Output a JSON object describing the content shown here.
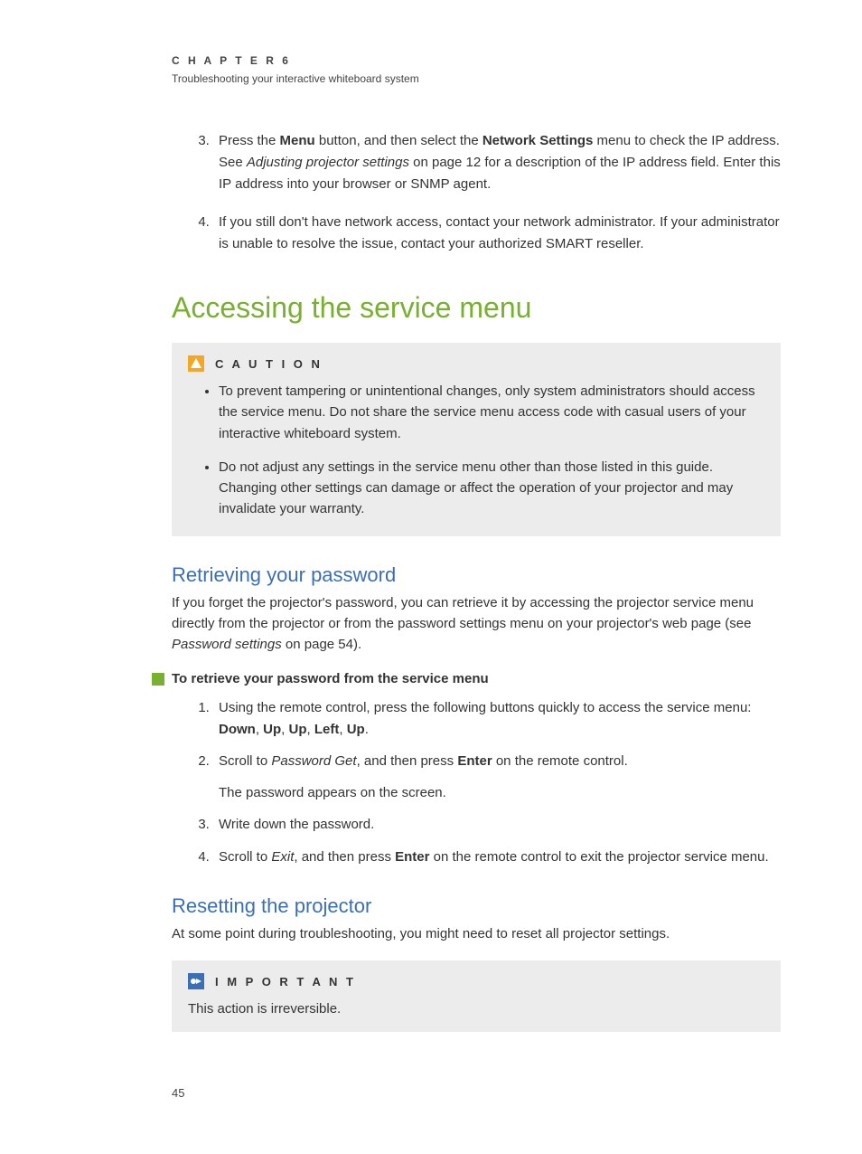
{
  "colors": {
    "h1": "#78b030",
    "h2": "#3b6fb5",
    "body_text": "#333333",
    "callout_bg": "#ececec",
    "caution_icon_bg": "#f5a623",
    "important_icon_bg": "#3b6fb5",
    "procedure_icon": "#78b030",
    "page_bg": "#ffffff"
  },
  "typography": {
    "body_fontsize": 15,
    "h1_fontsize": 32,
    "h2_fontsize": 22,
    "chapter_label_fontsize": 12,
    "letter_spacing_caps": 3
  },
  "header": {
    "chapter_label": "C H A P T E R   6",
    "chapter_sub": "Troubleshooting your interactive whiteboard system"
  },
  "top_list": {
    "start": 3,
    "items": [
      {
        "parts": [
          {
            "t": "Press the "
          },
          {
            "t": "Menu",
            "bold": true
          },
          {
            "t": " button, and then select the "
          },
          {
            "t": "Network Settings",
            "bold": true
          },
          {
            "t": " menu to check the IP address. See "
          },
          {
            "t": "Adjusting projector settings",
            "italic": true
          },
          {
            "t": " on page 12 for a description of the IP address field. Enter this IP address into your browser or SNMP agent."
          }
        ]
      },
      {
        "parts": [
          {
            "t": "If you still don't have network access, contact your network administrator. If your administrator is unable to resolve the issue, contact your authorized SMART reseller."
          }
        ]
      }
    ]
  },
  "section1": {
    "title": "Accessing the service menu"
  },
  "caution": {
    "label": "C A U T I O N",
    "icon_name": "warning-triangle-icon",
    "bullets": [
      "To prevent tampering or unintentional changes, only system administrators should access the service menu. Do not share the service menu access code with casual users of your interactive whiteboard system.",
      "Do not adjust any settings in the service menu other than those listed in this guide. Changing other settings can damage or affect the operation of your projector and may invalidate your warranty."
    ]
  },
  "retrieving": {
    "title": "Retrieving your password",
    "intro_parts": [
      {
        "t": "If you forget the projector's password, you can retrieve it by accessing the projector service menu directly from the projector or from the password settings menu on your projector's web page (see "
      },
      {
        "t": "Password settings",
        "italic": true
      },
      {
        "t": " on page 54)."
      }
    ],
    "procedure_title": "To retrieve your password from the service menu",
    "steps": [
      {
        "parts": [
          {
            "t": "Using the remote control, press the following buttons quickly to access the service menu: "
          },
          {
            "t": "Down",
            "bold": true
          },
          {
            "t": ", "
          },
          {
            "t": "Up",
            "bold": true
          },
          {
            "t": ", "
          },
          {
            "t": "Up",
            "bold": true
          },
          {
            "t": ", "
          },
          {
            "t": "Left",
            "bold": true
          },
          {
            "t": ", "
          },
          {
            "t": "Up",
            "bold": true
          },
          {
            "t": "."
          }
        ]
      },
      {
        "parts": [
          {
            "t": "Scroll to "
          },
          {
            "t": "Password Get",
            "italic": true
          },
          {
            "t": ",  and then press "
          },
          {
            "t": "Enter",
            "bold": true
          },
          {
            "t": " on the remote control."
          }
        ],
        "sub": "The password appears on the screen."
      },
      {
        "parts": [
          {
            "t": "Write down the password."
          }
        ]
      },
      {
        "parts": [
          {
            "t": "Scroll to "
          },
          {
            "t": "Exit",
            "italic": true
          },
          {
            "t": ",  and then press "
          },
          {
            "t": "Enter",
            "bold": true
          },
          {
            "t": " on the remote control to exit the projector service menu."
          }
        ]
      }
    ]
  },
  "resetting": {
    "title": "Resetting the projector",
    "intro": "At some point during troubleshooting, you might need to reset all projector settings."
  },
  "important": {
    "label": "I M P O R T A N T",
    "icon_name": "info-arrow-icon",
    "text": "This action is irreversible."
  },
  "page_number": "45"
}
